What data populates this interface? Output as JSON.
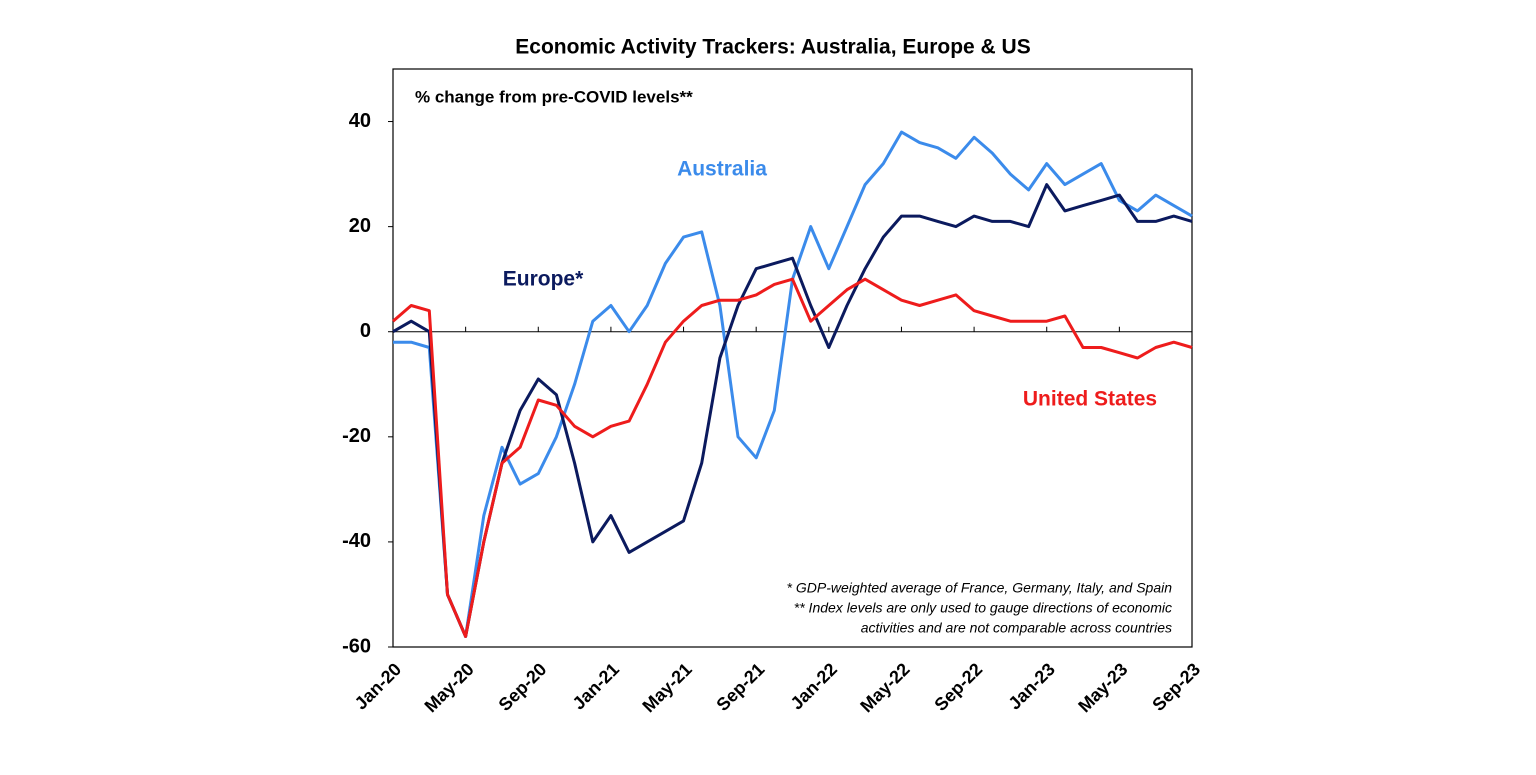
{
  "chart_data": {
    "type": "line",
    "title": "Economic Activity Trackers: Australia, Europe & US",
    "subtitle": "% change from pre-COVID levels**",
    "notes": [
      "* GDP-weighted average of France, Germany, Italy, and Spain",
      "** Index levels are only used to gauge directions of economic",
      "activities and are not comparable across countries"
    ],
    "categories": [
      "Jan-20",
      null,
      null,
      null,
      "May-20",
      null,
      null,
      null,
      "Sep-20",
      null,
      null,
      null,
      "Jan-21",
      null,
      null,
      null,
      "May-21",
      null,
      null,
      null,
      "Sep-21",
      null,
      null,
      null,
      "Jan-22",
      null,
      null,
      null,
      "May-22",
      null,
      null,
      null,
      "Sep-22",
      null,
      null,
      null,
      "Jan-23",
      null,
      null,
      null,
      "May-23",
      null,
      null,
      null,
      "Sep-23"
    ],
    "series": [
      {
        "name": "Australia",
        "color": "#3b8beb",
        "values": [
          -2,
          -2,
          -3,
          -50,
          -58,
          -35,
          -22,
          -29,
          -27,
          -20,
          -10,
          2,
          5,
          0,
          5,
          13,
          18,
          19,
          5,
          -20,
          -24,
          -15,
          10,
          20,
          12,
          20,
          28,
          32,
          38,
          36,
          35,
          33,
          37,
          34,
          30,
          27,
          32,
          28,
          30,
          32,
          25,
          23,
          26,
          24,
          22
        ]
      },
      {
        "name": "Europe*",
        "color": "#0b1a5e",
        "values": [
          0,
          2,
          0,
          -50,
          -58,
          -40,
          -25,
          -15,
          -9,
          -12,
          -25,
          -40,
          -35,
          -42,
          -40,
          -38,
          -36,
          -25,
          -5,
          5,
          12,
          13,
          14,
          5,
          -3,
          5,
          12,
          18,
          22,
          22,
          21,
          20,
          22,
          21,
          21,
          20,
          28,
          23,
          24,
          25,
          26,
          21,
          21,
          22,
          21
        ]
      },
      {
        "name": "United States",
        "color": "#ee1c1c",
        "values": [
          2,
          5,
          4,
          -50,
          -58,
          -40,
          -25,
          -22,
          -13,
          -14,
          -18,
          -20,
          -18,
          -17,
          -10,
          -2,
          2,
          5,
          6,
          6,
          7,
          9,
          10,
          2,
          5,
          8,
          10,
          8,
          6,
          5,
          6,
          7,
          4,
          3,
          2,
          2,
          2,
          3,
          -3,
          -3,
          -4,
          -5,
          -3,
          -2,
          -3
        ]
      }
    ],
    "ylim": [
      -60,
      50
    ],
    "yticks": [
      -60,
      -40,
      -20,
      0,
      20,
      40
    ]
  }
}
